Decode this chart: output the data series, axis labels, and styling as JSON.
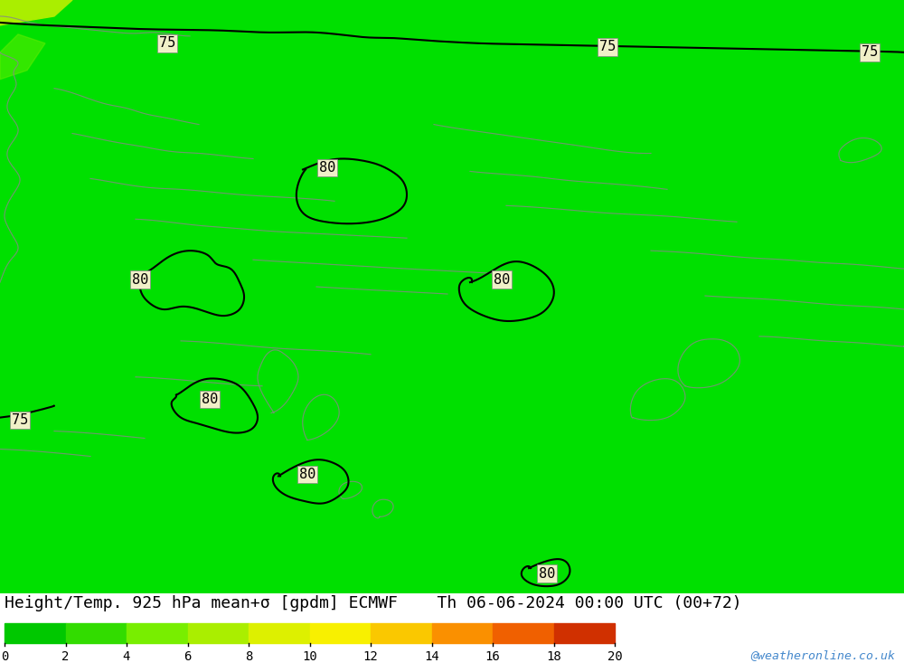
{
  "title": "Height/Temp. 925 hPa mean+σ [gpdm] ECMWF    Th 06-06-2024 00:00 UTC (00+72)",
  "colorbar_ticks": [
    0,
    2,
    4,
    6,
    8,
    10,
    12,
    14,
    16,
    18,
    20
  ],
  "colorbar_colors": [
    "#00c800",
    "#32dc00",
    "#78ee00",
    "#aaee00",
    "#ddf000",
    "#f8f000",
    "#fac800",
    "#fa9000",
    "#f06000",
    "#d03000",
    "#a00000"
  ],
  "background_color": "#00e000",
  "contour_color": "#000000",
  "border_color": "#aaaaaa",
  "watermark": "@weatheronline.co.uk",
  "watermark_color": "#4488cc",
  "title_fontsize": 13.5,
  "fig_width": 10.0,
  "fig_height": 7.33,
  "dpi": 100,
  "nw_corner_color": "#ccff00",
  "map_main_color": "#00e000"
}
